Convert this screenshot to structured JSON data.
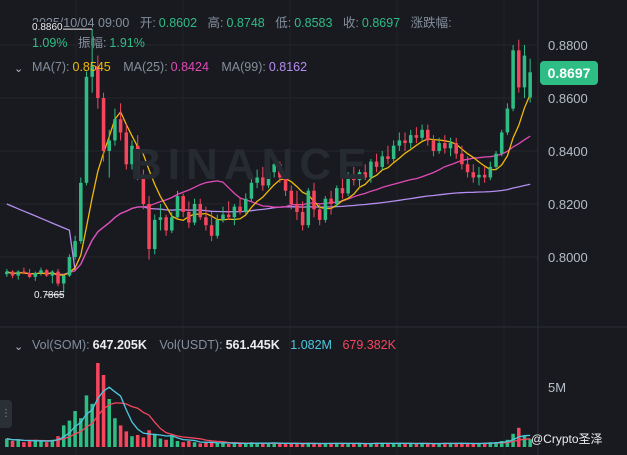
{
  "header": {
    "date": "2025/10/04 09:00",
    "open_label": "开:",
    "open": "0.8602",
    "high_label": "高:",
    "high": "0.8748",
    "low_label": "低:",
    "low": "0.8583",
    "close_label": "收:",
    "close": "0.8697",
    "change_label": "涨跌幅:",
    "change": "1.09%",
    "amplitude_label": "振幅:",
    "amplitude": "1.91%"
  },
  "ma_legend": {
    "ma7_label": "MA(7):",
    "ma7": "0.8545",
    "ma25_label": "MA(25):",
    "ma25": "0.8424",
    "ma99_label": "MA(99):",
    "ma99": "0.8162"
  },
  "vol_legend": {
    "vol_som_label": "Vol(SOM):",
    "vol_som": "647.205K",
    "vol_usdt_label": "Vol(USDT):",
    "vol_usdt": "561.445K",
    "vol_ma1": "1.082M",
    "vol_ma2": "679.382K"
  },
  "price_tag": "0.8697",
  "high_marker": "0.8860",
  "low_marker": "0.7865",
  "toggle_main": "⌄",
  "toggle_vol": "⌄",
  "watermark": "BINANCE",
  "credit": "@Crypto圣泽",
  "colors": {
    "up": "#2ebd85",
    "down": "#f6465d",
    "ma7": "#f0b90b",
    "ma25": "#e04ab4",
    "ma99": "#b58cf0",
    "vol_ma1": "#4cc9e0",
    "vol_ma2": "#f6465d"
  },
  "chart_data": {
    "type": "candlestick",
    "y_ticks": [
      "0.8800",
      "0.8600",
      "0.8400",
      "0.8200",
      "0.8000"
    ],
    "y_tick_values": [
      0.88,
      0.86,
      0.84,
      0.82,
      0.8
    ],
    "vol_tick": "5M",
    "vol_tick_value": 5000000,
    "candles": [
      [
        0.7935,
        0.7955,
        0.7925,
        0.7945
      ],
      [
        0.7945,
        0.795,
        0.792,
        0.793
      ],
      [
        0.793,
        0.795,
        0.7915,
        0.7945
      ],
      [
        0.7945,
        0.796,
        0.7935,
        0.794
      ],
      [
        0.794,
        0.7955,
        0.792,
        0.7925
      ],
      [
        0.7925,
        0.7945,
        0.791,
        0.794
      ],
      [
        0.794,
        0.796,
        0.793,
        0.795
      ],
      [
        0.795,
        0.7955,
        0.7925,
        0.793
      ],
      [
        0.793,
        0.795,
        0.79,
        0.7945
      ],
      [
        0.7945,
        0.7955,
        0.789,
        0.79
      ],
      [
        0.79,
        0.7935,
        0.7865,
        0.793
      ],
      [
        0.793,
        0.801,
        0.7925,
        0.8
      ],
      [
        0.8,
        0.808,
        0.799,
        0.806
      ],
      [
        0.806,
        0.83,
        0.805,
        0.828
      ],
      [
        0.828,
        0.87,
        0.827,
        0.868
      ],
      [
        0.868,
        0.886,
        0.862,
        0.872
      ],
      [
        0.872,
        0.876,
        0.856,
        0.86
      ],
      [
        0.86,
        0.862,
        0.836,
        0.84
      ],
      [
        0.84,
        0.848,
        0.83,
        0.844
      ],
      [
        0.844,
        0.856,
        0.842,
        0.852
      ],
      [
        0.852,
        0.858,
        0.844,
        0.847
      ],
      [
        0.847,
        0.85,
        0.833,
        0.835
      ],
      [
        0.835,
        0.844,
        0.833,
        0.842
      ],
      [
        0.842,
        0.846,
        0.829,
        0.831
      ],
      [
        0.831,
        0.833,
        0.818,
        0.82
      ],
      [
        0.82,
        0.823,
        0.799,
        0.803
      ],
      [
        0.803,
        0.816,
        0.801,
        0.814
      ],
      [
        0.814,
        0.82,
        0.81,
        0.815
      ],
      [
        0.815,
        0.816,
        0.808,
        0.81
      ],
      [
        0.81,
        0.817,
        0.809,
        0.815
      ],
      [
        0.815,
        0.825,
        0.814,
        0.823
      ],
      [
        0.823,
        0.824,
        0.815,
        0.817
      ],
      [
        0.817,
        0.821,
        0.811,
        0.813
      ],
      [
        0.813,
        0.822,
        0.812,
        0.82
      ],
      [
        0.82,
        0.822,
        0.814,
        0.815
      ],
      [
        0.815,
        0.819,
        0.81,
        0.812
      ],
      [
        0.812,
        0.817,
        0.806,
        0.808
      ],
      [
        0.808,
        0.816,
        0.807,
        0.814
      ],
      [
        0.814,
        0.819,
        0.813,
        0.816
      ],
      [
        0.816,
        0.821,
        0.814,
        0.815
      ],
      [
        0.815,
        0.82,
        0.812,
        0.819
      ],
      [
        0.819,
        0.822,
        0.816,
        0.817
      ],
      [
        0.817,
        0.824,
        0.816,
        0.822
      ],
      [
        0.822,
        0.83,
        0.821,
        0.828
      ],
      [
        0.828,
        0.833,
        0.826,
        0.83
      ],
      [
        0.83,
        0.834,
        0.825,
        0.827
      ],
      [
        0.827,
        0.834,
        0.826,
        0.832
      ],
      [
        0.832,
        0.838,
        0.83,
        0.835
      ],
      [
        0.835,
        0.836,
        0.828,
        0.83
      ],
      [
        0.83,
        0.833,
        0.823,
        0.825
      ],
      [
        0.825,
        0.827,
        0.818,
        0.82
      ],
      [
        0.82,
        0.825,
        0.814,
        0.817
      ],
      [
        0.817,
        0.821,
        0.81,
        0.812
      ],
      [
        0.812,
        0.826,
        0.811,
        0.825
      ],
      [
        0.825,
        0.828,
        0.815,
        0.818
      ],
      [
        0.818,
        0.82,
        0.812,
        0.814
      ],
      [
        0.814,
        0.823,
        0.813,
        0.822
      ],
      [
        0.822,
        0.825,
        0.816,
        0.82
      ],
      [
        0.82,
        0.827,
        0.819,
        0.826
      ],
      [
        0.826,
        0.83,
        0.822,
        0.824
      ],
      [
        0.824,
        0.832,
        0.823,
        0.831
      ],
      [
        0.831,
        0.834,
        0.827,
        0.829
      ],
      [
        0.829,
        0.833,
        0.826,
        0.832
      ],
      [
        0.832,
        0.835,
        0.829,
        0.83
      ],
      [
        0.83,
        0.837,
        0.828,
        0.836
      ],
      [
        0.836,
        0.839,
        0.832,
        0.834
      ],
      [
        0.834,
        0.84,
        0.833,
        0.838
      ],
      [
        0.838,
        0.842,
        0.835,
        0.837
      ],
      [
        0.837,
        0.844,
        0.836,
        0.842
      ],
      [
        0.842,
        0.847,
        0.84,
        0.844
      ],
      [
        0.844,
        0.847,
        0.84,
        0.843
      ],
      [
        0.843,
        0.848,
        0.841,
        0.846
      ],
      [
        0.846,
        0.849,
        0.843,
        0.845
      ],
      [
        0.845,
        0.85,
        0.844,
        0.848
      ],
      [
        0.848,
        0.85,
        0.842,
        0.844
      ],
      [
        0.844,
        0.846,
        0.838,
        0.84
      ],
      [
        0.84,
        0.845,
        0.839,
        0.843
      ],
      [
        0.843,
        0.846,
        0.839,
        0.841
      ],
      [
        0.841,
        0.845,
        0.838,
        0.843
      ],
      [
        0.843,
        0.845,
        0.837,
        0.839
      ],
      [
        0.839,
        0.842,
        0.833,
        0.835
      ],
      [
        0.835,
        0.838,
        0.83,
        0.832
      ],
      [
        0.832,
        0.835,
        0.828,
        0.83
      ],
      [
        0.83,
        0.834,
        0.827,
        0.831
      ],
      [
        0.831,
        0.834,
        0.828,
        0.83
      ],
      [
        0.83,
        0.836,
        0.829,
        0.834
      ],
      [
        0.834,
        0.84,
        0.833,
        0.839
      ],
      [
        0.839,
        0.848,
        0.838,
        0.847
      ],
      [
        0.847,
        0.858,
        0.846,
        0.856
      ],
      [
        0.856,
        0.88,
        0.855,
        0.878
      ],
      [
        0.878,
        0.882,
        0.862,
        0.864
      ],
      [
        0.864,
        0.88,
        0.86,
        0.876
      ],
      [
        0.8602,
        0.8748,
        0.8583,
        0.8697
      ]
    ],
    "volumes": [
      0.7,
      0.5,
      0.6,
      0.4,
      0.5,
      0.6,
      0.5,
      0.4,
      0.6,
      0.9,
      1.8,
      2.2,
      3.0,
      2.4,
      4.3,
      3.6,
      7.0,
      6.0,
      4.0,
      2.4,
      1.8,
      1.3,
      0.9,
      1.0,
      0.8,
      1.4,
      1.1,
      0.7,
      0.6,
      0.9,
      0.5,
      0.4,
      0.5,
      0.4,
      0.3,
      0.35,
      0.4,
      0.3,
      0.35,
      0.25,
      0.3,
      0.3,
      0.25,
      0.4,
      0.35,
      0.3,
      0.3,
      0.35,
      0.3,
      0.25,
      0.3,
      0.3,
      0.25,
      0.35,
      0.3,
      0.25,
      0.3,
      0.3,
      0.35,
      0.3,
      0.25,
      0.3,
      0.3,
      0.25,
      0.3,
      0.35,
      0.3,
      0.3,
      0.25,
      0.35,
      0.3,
      0.3,
      0.25,
      0.3,
      0.3,
      0.25,
      0.3,
      0.35,
      0.3,
      0.3,
      0.3,
      0.25,
      0.3,
      0.3,
      0.35,
      0.4,
      0.4,
      0.5,
      0.6,
      1.1,
      1.6,
      0.9,
      0.65
    ]
  }
}
